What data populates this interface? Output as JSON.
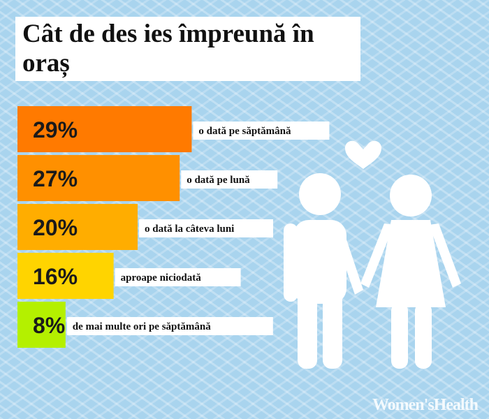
{
  "title": "Cât de des ies împreună în oraș",
  "watermark": "Women'sHealth",
  "chart_data": {
    "type": "bar",
    "orientation": "horizontal",
    "title": "Cât de des ies împreună în oraș",
    "categories": [
      "o dată pe săptămână",
      "o dată pe lună",
      "o dată la câteva luni",
      "aproape niciodată",
      "de mai multe ori pe săptămână"
    ],
    "values": [
      29,
      27,
      20,
      16,
      8
    ],
    "value_labels": [
      "29%",
      "27%",
      "20%",
      "16%",
      "8%"
    ],
    "colors": [
      "#ff7a00",
      "#ff9000",
      "#ffad00",
      "#ffd400",
      "#b4f000"
    ],
    "unit": "%",
    "grid": false,
    "legend": "none"
  },
  "decorations": {
    "figure_color": "#ffffff",
    "icons": [
      "heart-icon",
      "man-icon",
      "woman-icon"
    ]
  }
}
